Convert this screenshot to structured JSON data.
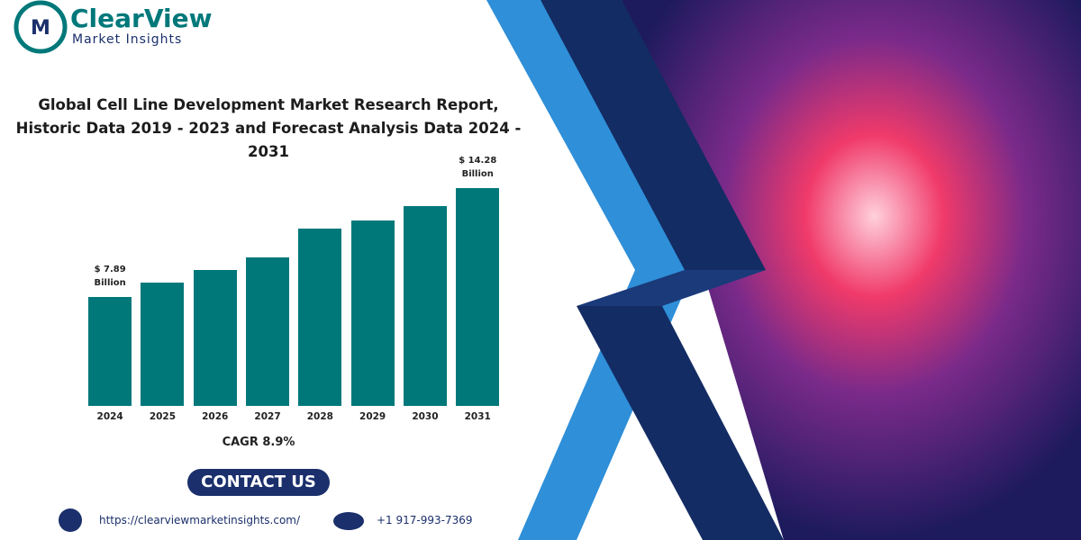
{
  "logo": {
    "name": "ClearView",
    "tagline": "Market Insights"
  },
  "chart_data": {
    "type": "bar",
    "title": "Global Cell Line Development Market Research Report, Historic Data 2019 - 2023 and Forecast Analysis Data 2024 - 2031",
    "categories": [
      "2024",
      "2025",
      "2026",
      "2027",
      "2028",
      "2029",
      "2030",
      "2031"
    ],
    "values": [
      7.89,
      8.73,
      9.47,
      10.21,
      11.9,
      12.38,
      13.22,
      14.28
    ],
    "value_labels": [
      "$ 7.89 Billion",
      null,
      null,
      null,
      null,
      null,
      null,
      "$ 14.28 Billion"
    ],
    "color": "#00787a",
    "ylim": [
      1.5,
      15
    ],
    "annotation": "CAGR 8.9%"
  },
  "button": "CONTACT US",
  "contact": {
    "website": "https://clearviewmarketinsights.com/",
    "phone": "+1 917-993-7369"
  }
}
